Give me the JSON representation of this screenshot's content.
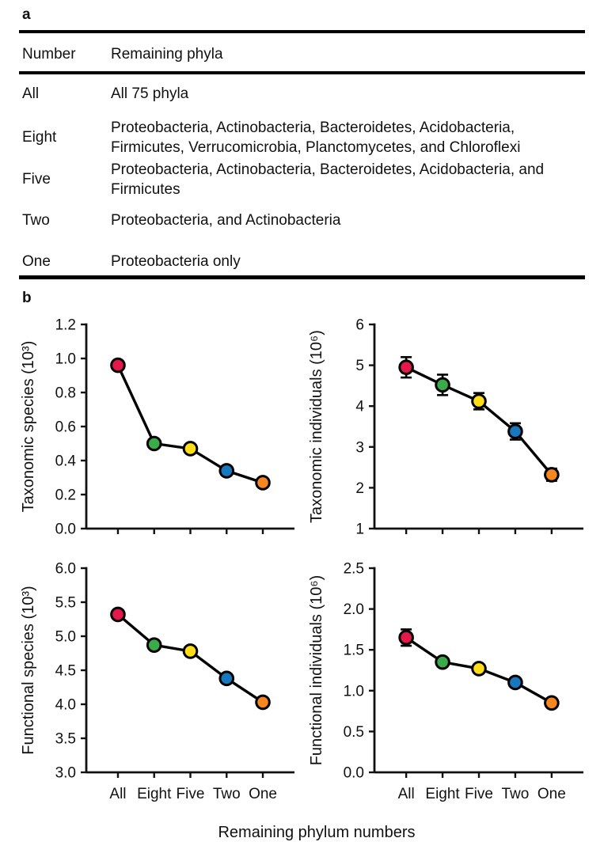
{
  "panels": {
    "a_label": "a",
    "b_label": "b"
  },
  "table": {
    "col_headers": {
      "number": "Number",
      "phyla": "Remaining phyla"
    },
    "rows": [
      {
        "number": "All",
        "phyla": "All 75 phyla"
      },
      {
        "number": "Eight",
        "phyla": "Proteobacteria, Actinobacteria, Bacteroidetes, Acidobacteria, Firmicutes, Verrucomicrobia, Planctomycetes, and Chloroflexi"
      },
      {
        "number": "Five",
        "phyla": "Proteobacteria, Actinobacteria, Bacteroidetes, Acidobacteria, and Firmicutes"
      },
      {
        "number": "Two",
        "phyla": "Proteobacteria, and Actinobacteria"
      },
      {
        "number": "One",
        "phyla": "Proteobacteria only"
      }
    ]
  },
  "chart_shared": {
    "xlabel": "Remaining phylum numbers",
    "categories": [
      "All",
      "Eight",
      "Five",
      "Two",
      "One"
    ],
    "point_colors": [
      "#e4184b",
      "#3bab49",
      "#ffde17",
      "#1878be",
      "#f6871f"
    ],
    "line_color": "#000000",
    "marker_outline": "#000000",
    "legend": "none",
    "grid": false
  },
  "chart_data": [
    {
      "id": "taxonomic-species",
      "type": "line",
      "title": "",
      "ylabel": "Taxonomic species (10³)",
      "xlabel": "Remaining phylum numbers",
      "categories": [
        "All",
        "Eight",
        "Five",
        "Two",
        "One"
      ],
      "values": [
        0.96,
        0.5,
        0.47,
        0.34,
        0.27
      ],
      "errors": null,
      "ylim": [
        0.0,
        1.2
      ],
      "yticks": [
        "0.0",
        "0.2",
        "0.4",
        "0.6",
        "0.8",
        "1.0",
        "1.2"
      ]
    },
    {
      "id": "taxonomic-individuals",
      "type": "line",
      "title": "",
      "ylabel": "Taxonomic individuals (10⁶)",
      "xlabel": "Remaining phylum numbers",
      "categories": [
        "All",
        "Eight",
        "Five",
        "Two",
        "One"
      ],
      "values": [
        4.95,
        4.52,
        4.12,
        3.38,
        2.32
      ],
      "errors": [
        0.25,
        0.25,
        0.2,
        0.2,
        0.15
      ],
      "ylim": [
        1,
        6
      ],
      "yticks": [
        "1",
        "2",
        "3",
        "4",
        "5",
        "6"
      ]
    },
    {
      "id": "functional-species",
      "type": "line",
      "title": "",
      "ylabel": "Functional species (10³)",
      "xlabel": "Remaining phylum numbers",
      "categories": [
        "All",
        "Eight",
        "Five",
        "Two",
        "One"
      ],
      "values": [
        5.32,
        4.87,
        4.78,
        4.38,
        4.03
      ],
      "errors": null,
      "ylim": [
        3.0,
        6.0
      ],
      "yticks": [
        "3.0",
        "3.5",
        "4.0",
        "4.5",
        "5.0",
        "5.5",
        "6.0"
      ]
    },
    {
      "id": "functional-individuals",
      "type": "line",
      "title": "",
      "ylabel": "Functional individuals (10⁶)",
      "xlabel": "Remaining phylum numbers",
      "categories": [
        "All",
        "Eight",
        "Five",
        "Two",
        "One"
      ],
      "values": [
        1.65,
        1.35,
        1.27,
        1.1,
        0.85
      ],
      "errors": [
        0.1,
        0.05,
        0.05,
        0.05,
        0.04
      ],
      "ylim": [
        0.0,
        2.5
      ],
      "yticks": [
        "0.0",
        "0.5",
        "1.0",
        "1.5",
        "2.0",
        "2.5"
      ]
    }
  ]
}
